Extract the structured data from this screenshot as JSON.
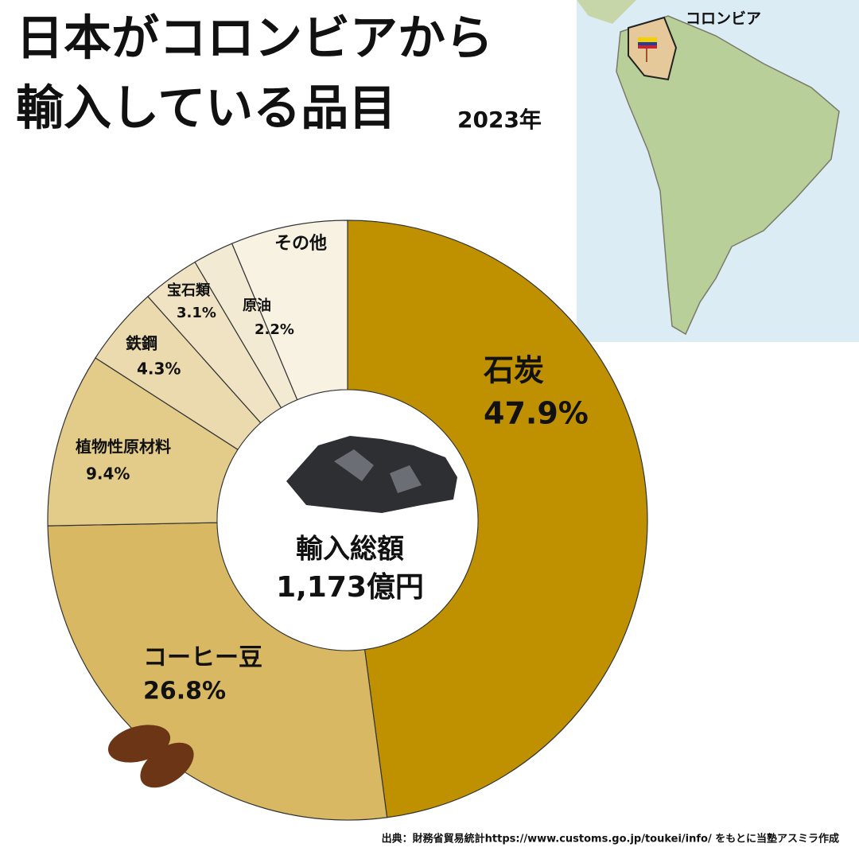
{
  "chart_data": {
    "type": "donut",
    "title": [
      "日本がコロンビアから",
      "輸入している品目"
    ],
    "subtitle": "2023年",
    "categories": [
      "石炭",
      "コーヒー豆",
      "植物性原材料",
      "鉄鋼",
      "宝石類",
      "原油",
      "その他"
    ],
    "values": [
      47.9,
      26.8,
      9.4,
      4.3,
      3.1,
      2.2,
      6.3
    ],
    "value_labels": [
      "47.9%",
      "26.8%",
      "9.4%",
      "4.3%",
      "3.1%",
      "2.2%",
      null
    ],
    "colors": [
      "#bf9000",
      "#d8b862",
      "#e3cb8a",
      "#ebdaae",
      "#efe3c3",
      "#f3ead3",
      "#f8f2e3"
    ],
    "center_label": "輸入総額",
    "center_value": "1,173億円",
    "map_label": "コロンビア",
    "source": "出典：財務省貿易統計https://www.customs.go.jp/toukei/info/ をもとに当塾アスミラ作成"
  }
}
